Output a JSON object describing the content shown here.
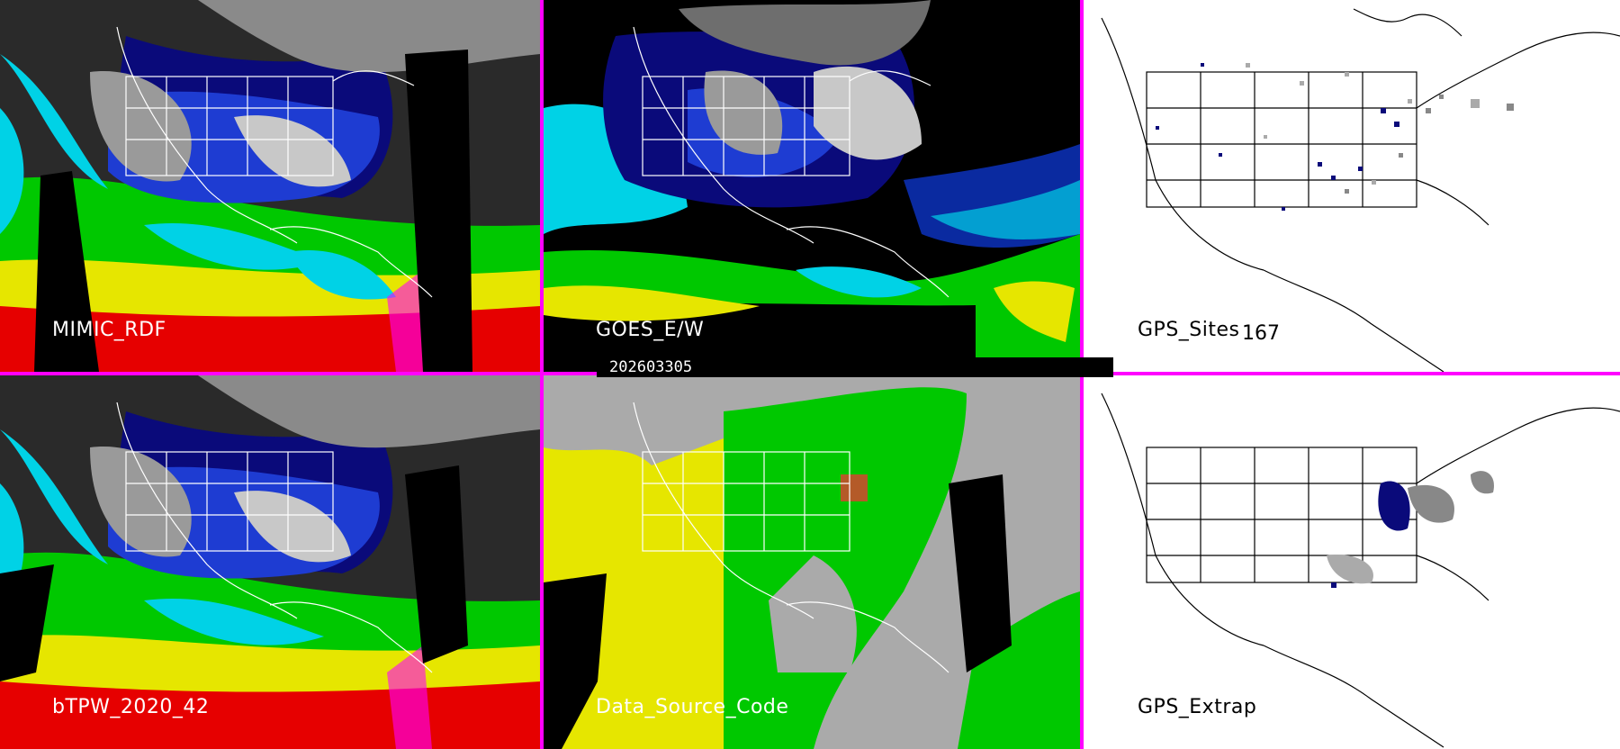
{
  "panels": {
    "mimic": {
      "label": "MIMIC_RDF"
    },
    "goes": {
      "label": "GOES_E/W"
    },
    "gps_sites": {
      "label": "GPS_Sites",
      "count": "167"
    },
    "btpw": {
      "label": "bTPW_2020_42"
    },
    "source": {
      "label": "Data_Source_Code"
    },
    "gps_extrap": {
      "label": "GPS_Extrap"
    }
  },
  "timestamp": "202603305",
  "colors": {
    "divider": "#ff00ff",
    "precip_levels": [
      "#000000",
      "#6e6e6e",
      "#c8c8c8",
      "#0a0a7a",
      "#1e3cd2",
      "#00d2e6",
      "#00c800",
      "#96e600",
      "#e6e600",
      "#c89600",
      "#e60000",
      "#ff00ff"
    ],
    "source_colors": [
      "#aaaaaa",
      "#e6e600",
      "#00c800",
      "#000000",
      "#b45a28"
    ]
  }
}
